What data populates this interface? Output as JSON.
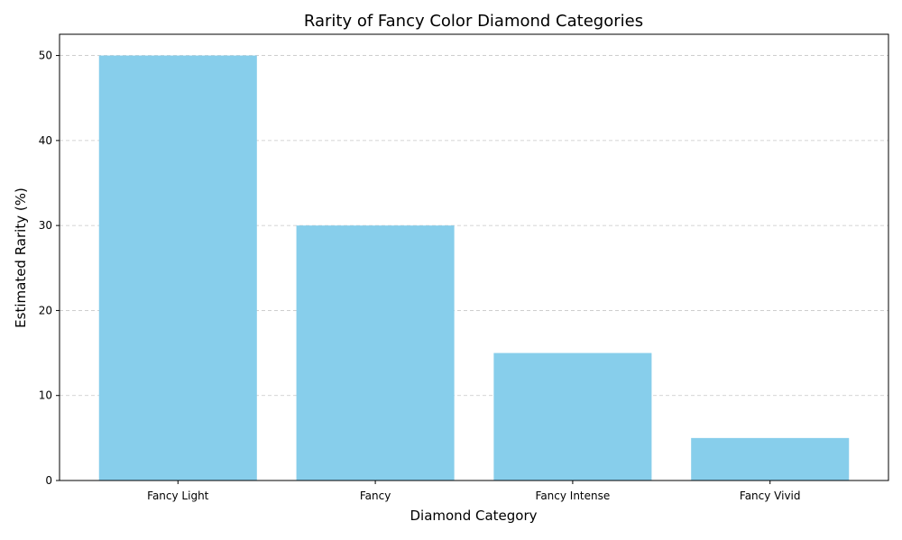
{
  "chart_data": {
    "type": "bar",
    "title": "Rarity of Fancy Color Diamond Categories",
    "xlabel": "Diamond Category",
    "ylabel": "Estimated Rarity (%)",
    "categories": [
      "Fancy Light",
      "Fancy",
      "Fancy Intense",
      "Fancy Vivid"
    ],
    "values": [
      50,
      30,
      15,
      5
    ],
    "ylim": [
      0,
      52.5
    ],
    "yticks": [
      0,
      10,
      20,
      30,
      40,
      50
    ],
    "bar_color": "#87CEEB",
    "grid": "y-dashed",
    "legend": "none"
  }
}
